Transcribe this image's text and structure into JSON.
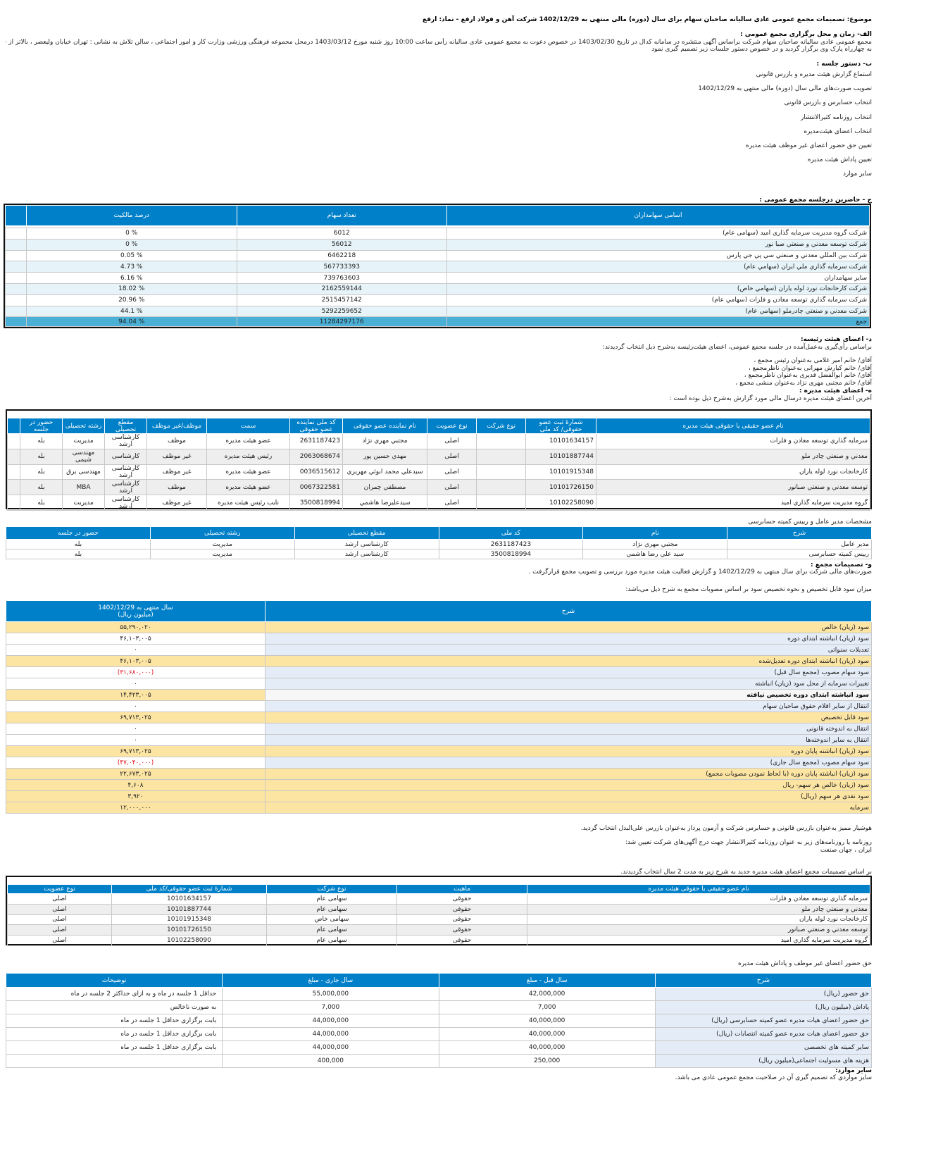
{
  "title": "موضوع: تصمیمات مجمع عمومی عادی سالیانه صاحبان سهام برای سال (دوره) مالی منتهی به 1402/12/29 شرکت آهن و فولاد ارفع - نماد: ارفع",
  "alef": {
    "heading": "الف- زمان و محل برگزاری مجمع عمومی :",
    "line1": "مجمع عمومی عادی سالیانه صاحبان سهام شرکت براساس آگهی منتشره در سامانه کدال در تاریخ 1403/02/30 در خصوص دعوت به مجمع عمومی عادی سالیانه رأس ساعت 10:00 روز شنبه مورخ 1403/03/12 درمحل  مجموعه فرهنگی ورزشی وزارت کار و امور اجتماعی ، سالن تلاش به نشانی : تهران خیابان ولیعصر ، بالاتر از جام جم ، نرسیده",
    "line2": "به چهارراه پارک وی   برگزار گردید و در خصوص دستور جلسات زیر تصمیم گیری نمود"
  },
  "be": {
    "heading": "ب- دستور جلسه :",
    "items": [
      "استماع گزارش هیئت مدیره و بازرس قانونی",
      "تصویب صورت‌های مالی سال (دوره) مالی منتهی به 1402/12/29",
      "انتخاب حسابرس و بازرس قانونی",
      "انتخاب روزنامه کثیرالانتشار",
      "انتخاب اعضای هیئت‌مدیره",
      "تعیین حق حضور اعضای غیر موظف هیئت مدیره",
      "تعیین پاداش هیئت مدیره",
      "سایر موارد"
    ]
  },
  "jim": {
    "heading": "ج - حاضرین درجلسه مجمع عمومی :",
    "headers": [
      "اسامی سهامداران",
      "تعداد سهام",
      "درصد مالکیت"
    ],
    "rows": [
      [
        "شرکت گروه مدیریت سرمایه گذاری امید (سهامی عام)",
        "6012",
        "% 0"
      ],
      [
        "شرکت توسعه معدني و صنعتي صبا نور",
        "56012",
        "% 0"
      ],
      [
        "شرکت بین المللي معدني و صنعتي سي پي جي پارس",
        "6462218",
        "% 0.05"
      ],
      [
        "شرکت سرمايه گذاري ملي ايران (سهامي عام)",
        "567733393",
        "% 4.73"
      ],
      [
        "سایر سهامداران",
        "739763603",
        "% 6.16"
      ],
      [
        "شرکت كارخانجات نورد لوله ياران (سهامي خاص)",
        "2162559144",
        "% 18.02"
      ],
      [
        "شرکت سرمايه گذاري توسعه معادن و فلزات (سهامي عام)",
        "2515457142",
        "% 20.96"
      ],
      [
        "شرکت معدني و صنعتي چادرملو (سهامي عام)",
        "5292259652",
        "% 44.1"
      ]
    ],
    "total": [
      "جمع",
      "11284297176",
      "% 94.04"
    ]
  },
  "dal": {
    "heading": "د- اعضای هیئت رئیسه:",
    "intro": "براساس رأی‌گیری به‌عمل‌آمده در جلسه مجمع عمومی، اعضای هیئت‌رئیسه به‌شرح ذیل انتخاب گردیدند:",
    "members": [
      "آقای/ خانم   امیر غلامی  به‌عنوان رئیس مجمع ،",
      "آقای/ خانم   کیارش مهرانی  به‌عنوان ناظرمجمع ،",
      "آقای/ خانم   ابوالفضل قدیری  به‌عنوان ناظرمجمع ،",
      "آقای/ خانم   مجتبی مهری نژاد  به‌عنوان منشی مجمع ،"
    ]
  },
  "he": {
    "heading": "ه- اعضای هیئت مدیره :",
    "intro": "آخرین اعضای هیئت مدیره درسال مالی مورد گزارش به‌شرح ذیل بوده است :",
    "headers": [
      "نام عضو حقیقی یا حقوقی هیئت مدیره",
      "شمارهٔ ثبت عضو حقوقی/ کد ملی",
      "نوع شرکت",
      "نوع عضویت",
      "نام نماینده عضو حقوقی",
      "کد ملی نماینده عضو حقوقی",
      "سمت",
      "موظف/غیر موظف",
      "مقطع تحصیلی",
      "رشته تحصیلی",
      "حضور در جلسه"
    ],
    "rows": [
      [
        "سرمايه گذاري توسعه معادن و فلزات",
        "10101634157",
        "",
        "اصلی",
        "مجتبي مهري نژاد",
        "2631187423",
        "عضو هيئت مديره",
        "موظف",
        "کارشناسی ارشد",
        "مدیریت",
        "بله"
      ],
      [
        "معدني و صنعتي چادر ملو",
        "10101887744",
        "",
        "اصلی",
        "مهدي حسين پور",
        "2063068674",
        "رئيس هيئت مديره",
        "غير موظف",
        "کارشناسی",
        "مهندسی شیمی",
        "بله"
      ],
      [
        "كارخانجات نورد لوله ياران",
        "10101915348",
        "",
        "اصلی",
        "سيدعلي محمد ابوئي مهريزي",
        "0036515612",
        "عضو هيئت مديره",
        "غير موظف",
        "کارشناسی ارشد",
        "مهندسی برق",
        "بله"
      ],
      [
        "توسعه معدني و صنعتي صبانور",
        "10101726150",
        "",
        "اصلی",
        "مصطفي چمران",
        "0067322581",
        "عضو هيئت مديره",
        "موظف",
        "کارشناسی ارشد",
        "MBA",
        "بله"
      ],
      [
        "گروه مديريت سرمايه گذاري اميد",
        "10102258090",
        "",
        "اصلی",
        "سيدعليرضا هاشمي",
        "3500818994",
        "نايب رئيس هيئت مديره",
        "غير موظف",
        "کارشناسی ارشد",
        "مدیریت",
        "بله"
      ]
    ]
  },
  "ceo": {
    "title": "مشخصات مدیر عامل و رییس کمیته حسابرسی",
    "headers": [
      "شرح",
      "نام",
      "کد ملی",
      "مقطع تحصیلی",
      "رشته تحصیلی",
      "حضور در جلسه"
    ],
    "rows": [
      [
        "مدیر عامل",
        "مجتبي مهري نژاد",
        "2631187423",
        "کارشناسی ارشد",
        "مدیریت",
        "بله"
      ],
      [
        "رییس کمیته حسابرسی",
        "سيد علي رضا هاشمي",
        "3500818994",
        "کارشناسی ارشد",
        "مدیریت",
        "بله"
      ]
    ]
  },
  "vav": {
    "heading": "و- تصمیمات مجمع :",
    "line1": "صورت‌های مالی شرکت برای سال منتهی به  1402/12/29 و گزارش فعالیت هیئت مدیره مورد بررسی و تصویب مجمع قرارگرفت .",
    "line2": "میزان سود قابل تخصیص و نحوه تخصیص سود بر اساس مصوبات مجمع به شرح ذیل می‌باشد:"
  },
  "profit": {
    "headers": [
      "شرح",
      "سال منتهی به 1402/12/29",
      "(میلیون ریال)"
    ],
    "rows": [
      [
        "سود (زیان) خالص",
        "۵۵,۲۹۰,۰۲۰",
        "hl"
      ],
      [
        "سود (زیان) انباشته ابتدای دوره",
        "۴۶,۱۰۳,۰۰۵",
        ""
      ],
      [
        "تعدیلات سنواتی",
        "۰",
        ""
      ],
      [
        "سود (زیان) انباشته ابتدای دوره تعدیل‌شده",
        "۴۶,۱۰۳,۰۰۵",
        "hl"
      ],
      [
        "سود سهام مصوب (مجمع سال قبل)",
        "(۳۱,۶۸۰,۰۰۰)",
        "red"
      ],
      [
        "تغییرات سرمایه از محل سود (زیان) انباشته",
        "۰",
        ""
      ],
      [
        "سود انباشته ابتدای دوره تخصیص نیافته",
        "۱۴,۴۲۳,۰۰۵",
        "bold"
      ],
      [
        "انتقال از سایر اقلام حقوق صاحبان سهام",
        "۰",
        ""
      ],
      [
        "سود قابل تخصیص",
        "۶۹,۷۱۳,۰۲۵",
        "hl"
      ],
      [
        "انتقال به اندوخته قانونی",
        "۰",
        ""
      ],
      [
        "انتقال به سایر اندوخته‌ها",
        "۰",
        ""
      ],
      [
        "سود (زیان) انباشته پایان دوره",
        "۶۹,۷۱۳,۰۲۵",
        "hl"
      ],
      [
        "سود سهام مصوب (مجمع سال جاری)",
        "(۴۷,۰۴۰,۰۰۰)",
        "red"
      ],
      [
        "سود (زیان) انباشته پایان دوره (با لحاظ نمودن مصوبات مجمع)",
        "۲۲,۶۷۳,۰۲۵",
        "hl"
      ],
      [
        "سود (زیان) خالص هر سهم- ریال",
        "۴,۶۰۸",
        "hl"
      ],
      [
        "سود نقدی هر سهم (ریال)",
        "۳,۹۲۰",
        "hl"
      ],
      [
        "سرمایه",
        "۱۲,۰۰۰,۰۰۰",
        "hl"
      ]
    ]
  },
  "auditor": "هوشیار ممیز  به‌عنوان بازرس قانونی و حسابرس شرکت و   آزمون پرداز  به‌عنوان بازرس علی‌البدل انتخاب گردید.",
  "news": {
    "line1": "روزنامه یا روزنامه‌های زیر به عنوان روزنامه کثیرالانتشار جهت درج آگهی‌های شرکت تعیین شد:",
    "line2": "ایران ، جهان صنعت"
  },
  "newboard": {
    "intro": "بر اساس تصمیمات مجمع اعضای هیئت مدیره جدید به شرح زیر به مدت 2 سال انتخاب گردیدند.",
    "headers": [
      "نام عضو حقیقی یا حقوقی هیئت مدیره",
      "ماهیت",
      "نوع شرکت",
      "شمارهٔ ثبت عضو حقوقی/کد ملی",
      "نوع عضویت"
    ],
    "rows": [
      [
        "سرمايه گذاري توسعه معادن و فلزات",
        "حقوقی",
        "سهامی عام",
        "10101634157",
        "اصلی"
      ],
      [
        "معدني و صنعتي چادر ملو",
        "حقوقی",
        "سهامی عام",
        "10101887744",
        "اصلی"
      ],
      [
        "كارخانجات نورد لوله ياران",
        "حقوقی",
        "سهامی خاص",
        "10101915348",
        "اصلی"
      ],
      [
        "توسعه معدني و صنعتي صبانور",
        "حقوقی",
        "سهامی عام",
        "10101726150",
        "اصلی"
      ],
      [
        "گروه مديريت سرمايه گذاري اميد",
        "حقوقی",
        "سهامی عام",
        "10102258090",
        "اصلی"
      ]
    ]
  },
  "fees": {
    "title": "حق حضور اعضای غیر موظف و پاداش هیئت مدیره",
    "headers": [
      "شرح",
      "سال قبل - مبلغ",
      "سال جاری - مبلغ",
      "توضیحات"
    ],
    "rows": [
      [
        "حق حضور (ریال)",
        "42,000,000",
        "55,000,000",
        "حداقل  1   جلسه در ماه   و به ازای حداکثر 2   جلسه در ماه"
      ],
      [
        "پاداش (میلیون ریال)",
        "7,000",
        "7,000",
        "به صورت ناخالص"
      ],
      [
        "حق حضور اعضای هیات مدیره عضو کمیته حسابرسی (ریال)",
        "40,000,000",
        "44,000,000",
        "بابت برگزاری حداقل 1 جلسه در ماه"
      ],
      [
        "حق حضور اعضای هیات مدیره عضو کمیته انتصابات (ریال)",
        "40,000,000",
        "44,000,000",
        "بابت برگزاری حداقل 1 جلسه در ماه"
      ],
      [
        "سایر کمیته های تخصصی",
        "40,000,000",
        "44,000,000",
        "بابت برگزاری حداقل 1 جلسه در ماه"
      ],
      [
        "هزینه های مسولیت اجتماعی(میلیون ریال)",
        "250,000",
        "400,000",
        ""
      ]
    ]
  },
  "other": {
    "heading": "سایر موارد:",
    "line": "سایر مواردی که تصمیم گیری آن در صلاحیت مجمع عمومی عادی می باشد."
  },
  "colors": {
    "header": "#0080c8",
    "highlight": "#fce4a3",
    "label": "#e4ecf7",
    "negative": "#e0101c"
  }
}
